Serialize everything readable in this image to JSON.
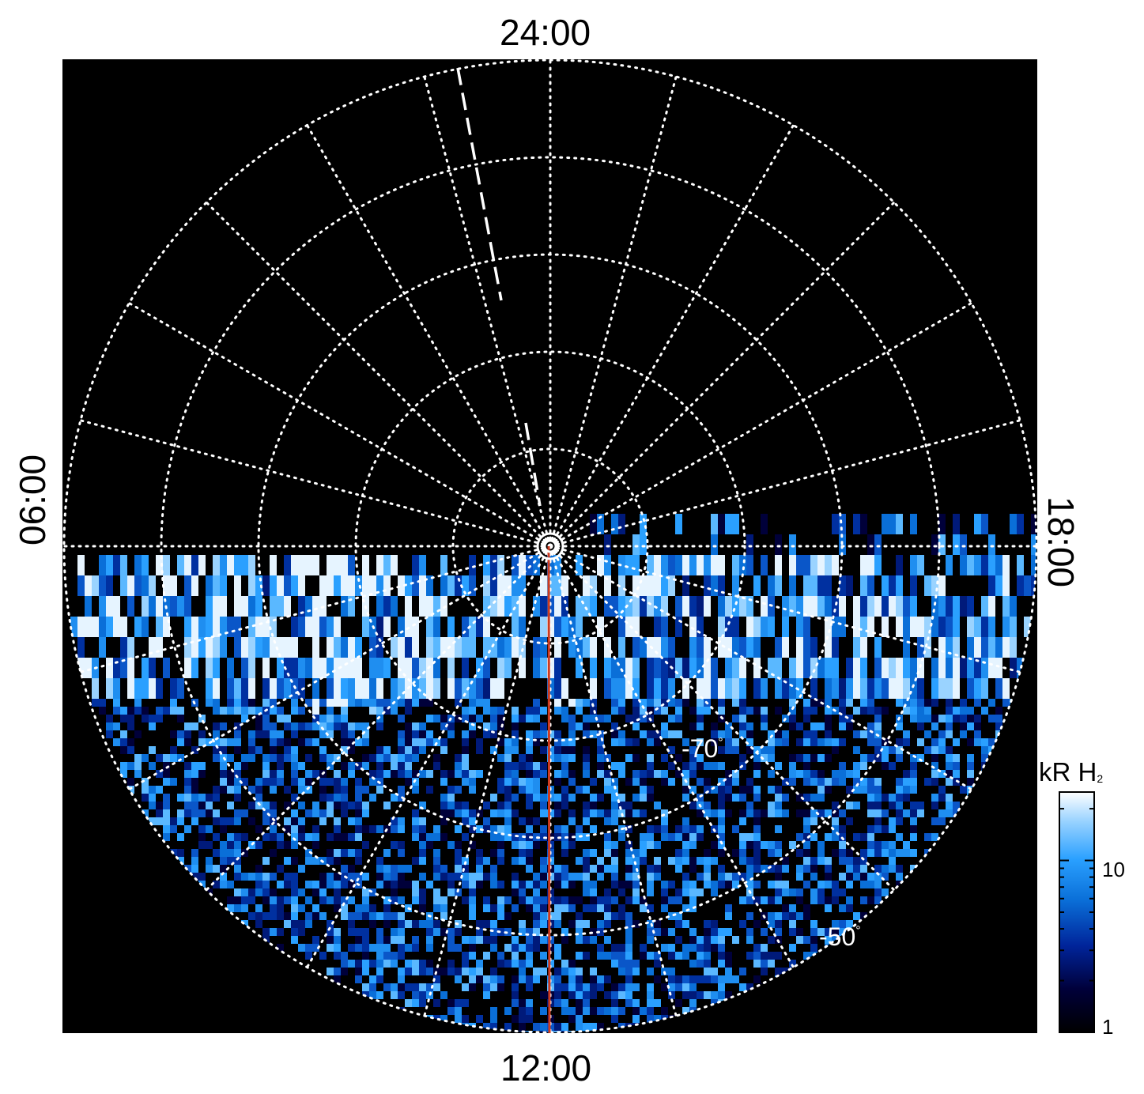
{
  "labels": {
    "top": "24:00",
    "bottom": "12:00",
    "left": "06:00",
    "right": "18:00"
  },
  "latitude_labels": {
    "inner": "-70",
    "outer": "-50",
    "degree_mark": "°"
  },
  "colorbar": {
    "title_main": "kR H",
    "title_sub": "2",
    "tick_10": "10",
    "tick_1": "1",
    "scale": "log",
    "range": [
      1,
      25
    ],
    "colors": [
      "#000000",
      "#00004a",
      "#0030a0",
      "#0a6fd8",
      "#2aa0ff",
      "#8fd0ff",
      "#ffffff"
    ]
  },
  "map": {
    "projection": "polar",
    "hemisphere": "south",
    "background_color": "#000000",
    "grid_color": "#ffffff",
    "meridian_line_color": "#cc3a1f",
    "grid_latitudes": [
      -80,
      -70,
      -60,
      -50,
      -40
    ],
    "grid_local_times_hours": [
      0,
      1,
      2,
      3,
      4,
      5,
      6,
      7,
      8,
      9,
      10,
      11,
      12,
      13,
      14,
      15,
      16,
      17,
      18,
      19,
      20,
      21,
      22,
      23
    ]
  }
}
